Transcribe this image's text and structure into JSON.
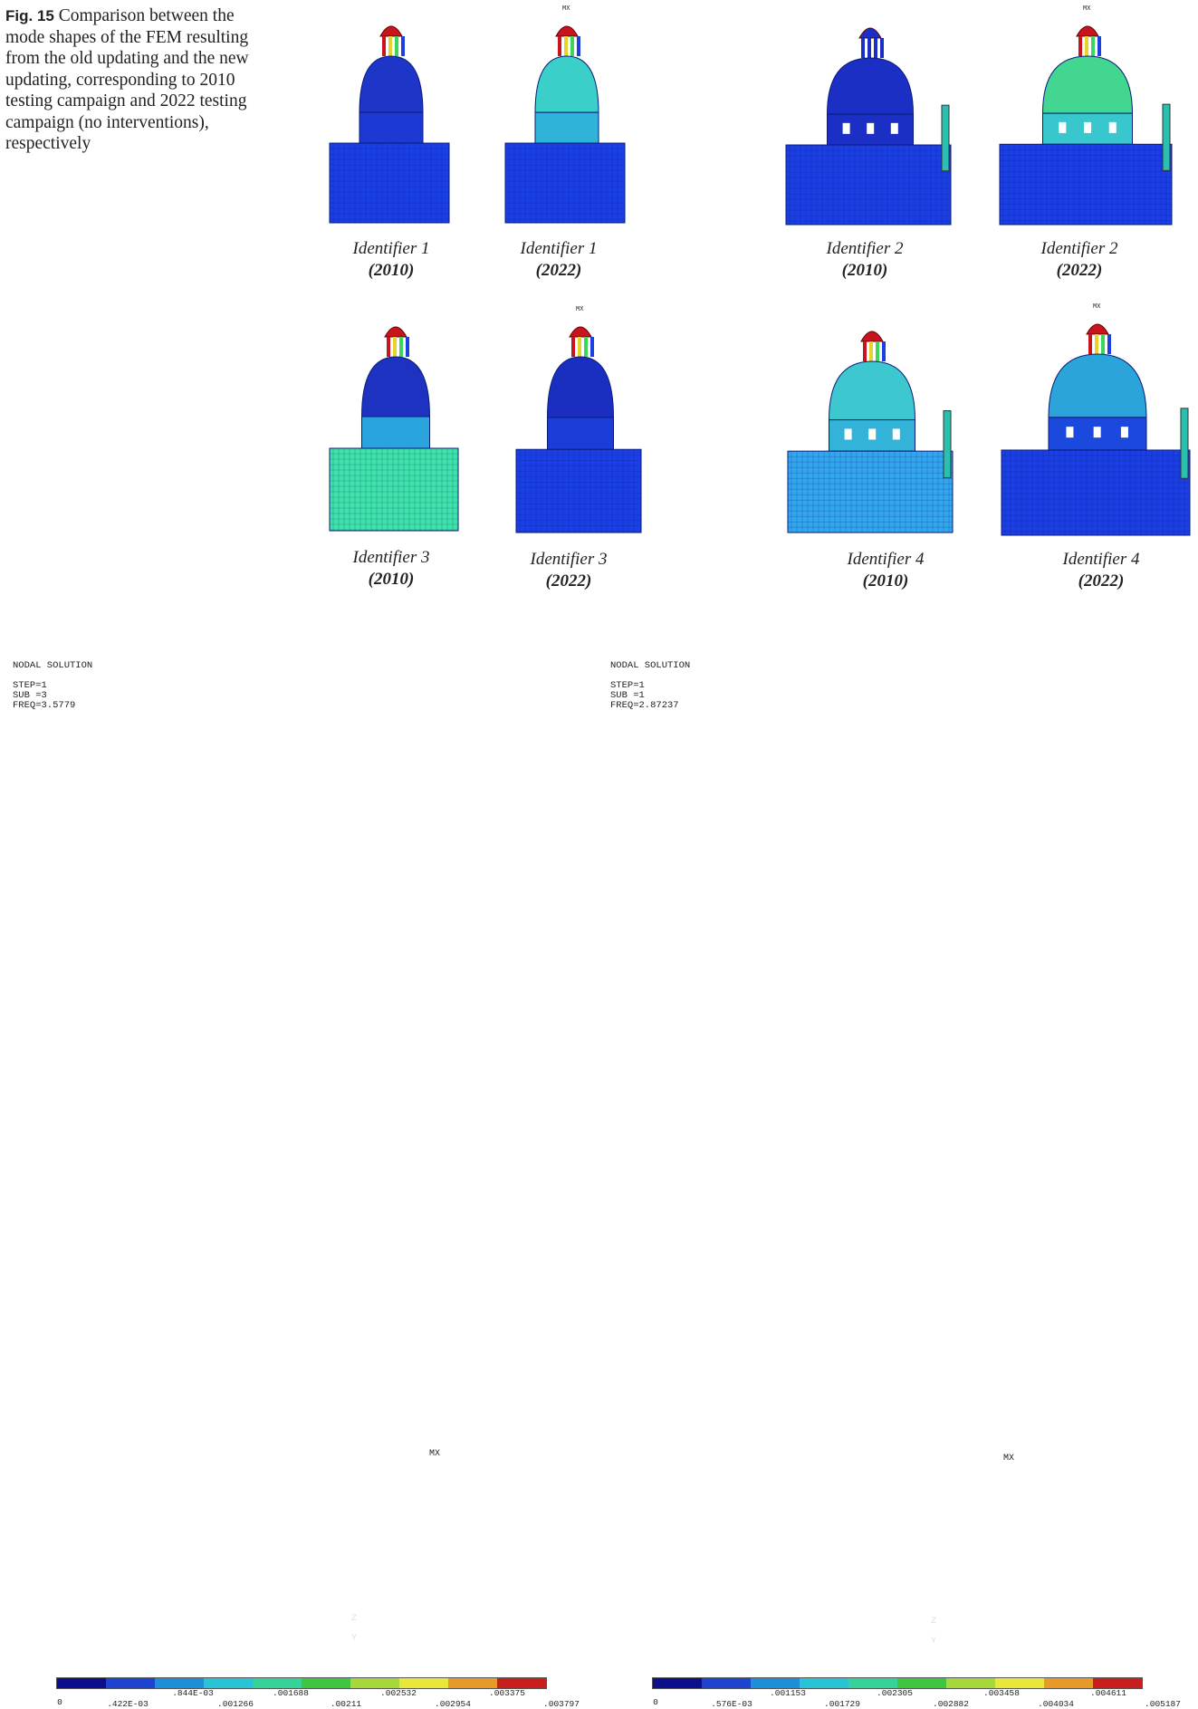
{
  "caption": {
    "label": "Fig. 15",
    "text": " Comparison between the mode shapes of the FEM resulting from the old updating and the new updating, corresponding to 2010 testing campaign and 2022 testing campaign (no interventions), respectively"
  },
  "thumbnails": [
    {
      "label_id": "Identifier 1",
      "year": "(2010)",
      "mx": ""
    },
    {
      "label_id": "Identifier 1",
      "year": "(2022)",
      "mx": "MX"
    },
    {
      "label_id": "Identifier 2",
      "year": "(2010)",
      "mx": ""
    },
    {
      "label_id": "Identifier 2",
      "year": "(2022)",
      "mx": "MX"
    },
    {
      "label_id": "Identifier 3",
      "year": "(2010)",
      "mx": ""
    },
    {
      "label_id": "Identifier 3",
      "year": "(2022)",
      "mx": "MX"
    },
    {
      "label_id": "Identifier 4",
      "year": "(2010)",
      "mx": ""
    },
    {
      "label_id": "Identifier 4",
      "year": "(2022)",
      "mx": "MX"
    }
  ],
  "panels": [
    {
      "title": "NODAL SOLUTION",
      "step": "STEP=1",
      "sub": "SUB =3",
      "freq": "FREQ=3.5779",
      "mx": "MX",
      "axis_z": "Z",
      "axis_y": "Y",
      "ticks_top": [
        ".844E-03",
        ".001688",
        ".002532",
        ".003375"
      ],
      "ticks_bottom": [
        "0",
        ".422E-03",
        ".001266",
        ".00211",
        ".002954",
        ".003797"
      ]
    },
    {
      "title": "NODAL SOLUTION",
      "step": "STEP=1",
      "sub": "SUB =1",
      "freq": "FREQ=2.87237",
      "mx": "MX",
      "axis_z": "Z",
      "axis_y": "Y",
      "ticks_top": [
        ".001153",
        ".002305",
        ".003458",
        ".004611"
      ],
      "ticks_bottom": [
        "0",
        ".576E-03",
        ".001729",
        ".002882",
        ".004034",
        ".005187"
      ]
    }
  ],
  "colors": {
    "legend": [
      "#0b0f8a",
      "#1c44d0",
      "#1f8ed8",
      "#27c4d6",
      "#35d39a",
      "#3fc640",
      "#a6d83a",
      "#e9e83a",
      "#e79a2a",
      "#c81e1e"
    ],
    "structure_dark": "#0a2bb0",
    "structure_mid": "#1c49e0",
    "structure_light": "#29b8e2",
    "structure_green": "#3bd99a"
  }
}
